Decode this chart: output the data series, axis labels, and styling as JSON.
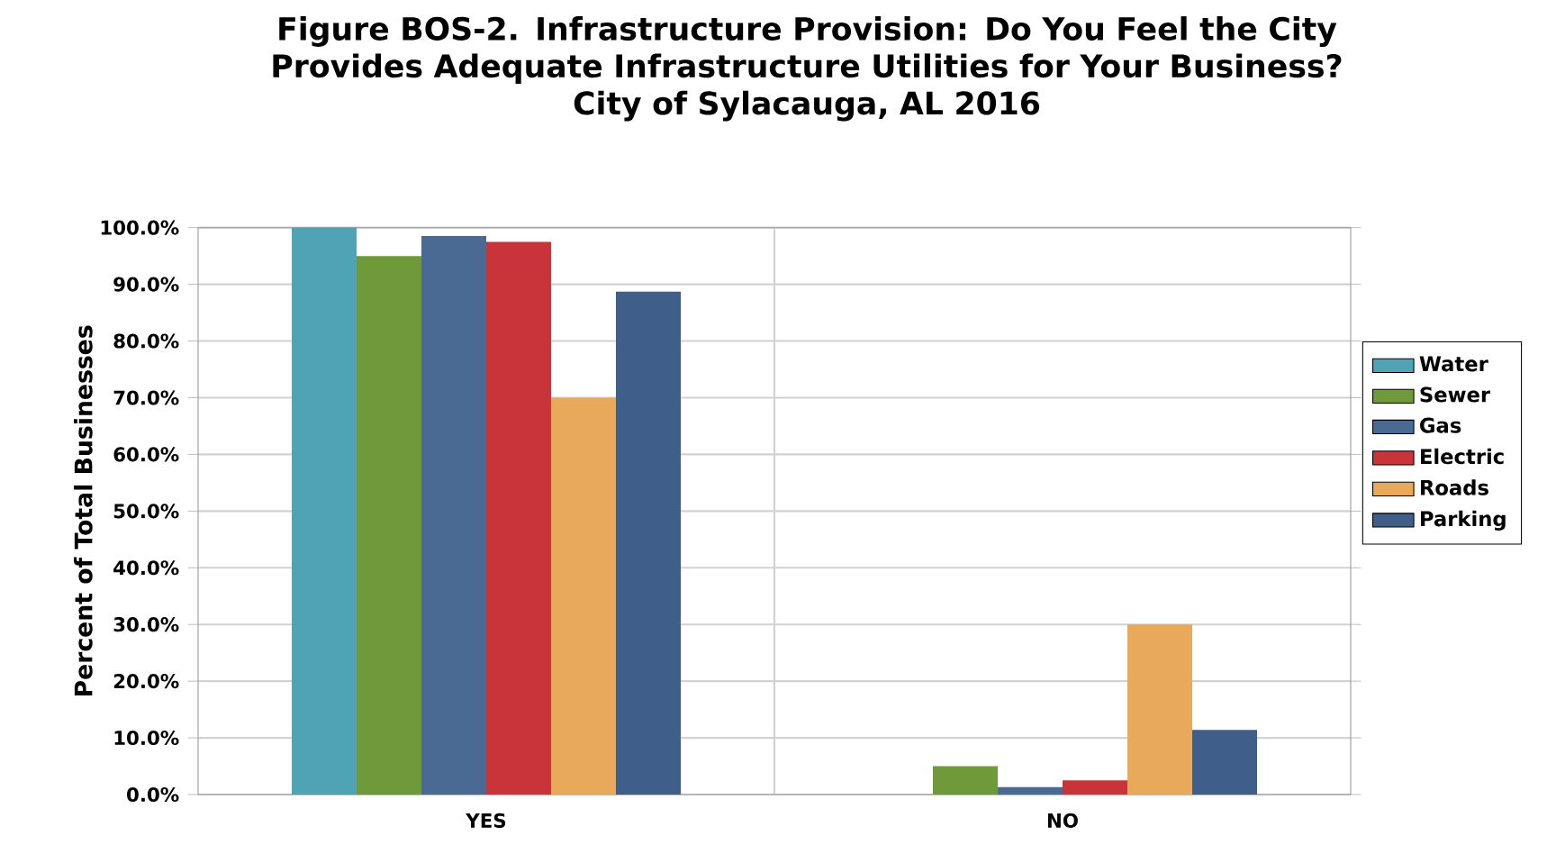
{
  "chart_data": {
    "type": "bar",
    "title": "Figure BOS-2. Infrastructure Provision: Do You Feel the City Provides Adequate Infrastructure Utilities for Your Business?",
    "subtitle": "City of Sylacauga, AL 2016",
    "ylabel": "Percent of Total Businesses",
    "categories": [
      "YES",
      "NO"
    ],
    "series": [
      {
        "name": "Water",
        "color": "#4fa3b5",
        "values": [
          100,
          0
        ]
      },
      {
        "name": "Sewer",
        "color": "#6f9a3a",
        "values": [
          95,
          5
        ]
      },
      {
        "name": "Gas",
        "color": "#4a6a94",
        "values": [
          98.5,
          1.3
        ]
      },
      {
        "name": "Electric",
        "color": "#c8343a",
        "values": [
          97.5,
          2.5
        ]
      },
      {
        "name": "Roads",
        "color": "#e8a95a",
        "values": [
          70,
          30
        ]
      },
      {
        "name": "Parking",
        "color": "#3f5f8a",
        "values": [
          88.7,
          11.4
        ]
      }
    ],
    "ylim": [
      0,
      100
    ],
    "yticks": [
      {
        "value": 0,
        "label": "0.0%"
      },
      {
        "value": 10,
        "label": "10.0%"
      },
      {
        "value": 20,
        "label": "20.0%"
      },
      {
        "value": 30,
        "label": "30.0%"
      },
      {
        "value": 40,
        "label": "40.0%"
      },
      {
        "value": 50,
        "label": "50.0%"
      },
      {
        "value": 60,
        "label": "60.0%"
      },
      {
        "value": 70,
        "label": "70.0%"
      },
      {
        "value": 80,
        "label": "80.0%"
      },
      {
        "value": 90,
        "label": "90.0%"
      },
      {
        "value": 100,
        "label": "100.0%"
      }
    ],
    "grid": true,
    "legend": "right"
  }
}
